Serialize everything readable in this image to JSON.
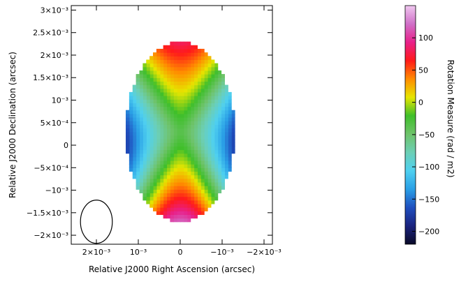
{
  "chart_data": {
    "type": "heatmap",
    "xlabel": "Relative J2000 Right Ascension (arcsec)",
    "ylabel": "Relative J2000 Declination (arcsec)",
    "x_ticks": [
      {
        "value": 0.002,
        "label": "2×10⁻³"
      },
      {
        "value": 0.001,
        "label": "10⁻³"
      },
      {
        "value": 0.0,
        "label": "0"
      },
      {
        "value": -0.001,
        "label": "−10⁻³"
      },
      {
        "value": -0.002,
        "label": "−2×10⁻³"
      }
    ],
    "y_ticks": [
      {
        "value": 0.003,
        "label": "3×10⁻³"
      },
      {
        "value": 0.0025,
        "label": "2.5×10⁻³"
      },
      {
        "value": 0.002,
        "label": "2×10⁻³"
      },
      {
        "value": 0.0015,
        "label": "1.5×10⁻³"
      },
      {
        "value": 0.001,
        "label": "10⁻³"
      },
      {
        "value": 0.0005,
        "label": "5×10⁻⁴"
      },
      {
        "value": 0.0,
        "label": "0"
      },
      {
        "value": -0.0005,
        "label": "−5×10⁻⁴"
      },
      {
        "value": -0.001,
        "label": "−10⁻³"
      },
      {
        "value": -0.0015,
        "label": "−1.5×10⁻³"
      },
      {
        "value": -0.002,
        "label": "−2×10⁻³"
      }
    ],
    "xlim": [
      0.0026,
      -0.0022
    ],
    "ylim": [
      -0.0022,
      0.0031
    ],
    "colorbar": {
      "label": "Rotation Measure (rad / m2)",
      "range": [
        -220,
        150
      ],
      "ticks": [
        {
          "value": 100,
          "label": "100"
        },
        {
          "value": 50,
          "label": "50"
        },
        {
          "value": 0,
          "label": "0"
        },
        {
          "value": -50,
          "label": "−50"
        },
        {
          "value": -100,
          "label": "−100"
        },
        {
          "value": -150,
          "label": "−150"
        },
        {
          "value": -200,
          "label": "−200"
        }
      ]
    },
    "ellipse_region": {
      "center_x": 0.0,
      "center_y": 0.0003,
      "semi_x": 0.0013,
      "semi_y": 0.002
    },
    "beam": {
      "center_x": 0.002,
      "center_y": -0.0017,
      "semi_x": 0.00038,
      "semi_y": 0.00048
    },
    "colors": [
      "#0a0a28",
      "#1a237e",
      "#1f4fbf",
      "#2a9fe6",
      "#4fd0f0",
      "#6ccfb5",
      "#6ec36a",
      "#3fbf2a",
      "#e6e600",
      "#ff8c00",
      "#ff1a1a",
      "#e8208a",
      "#d070c8",
      "#f0c8f0"
    ]
  }
}
